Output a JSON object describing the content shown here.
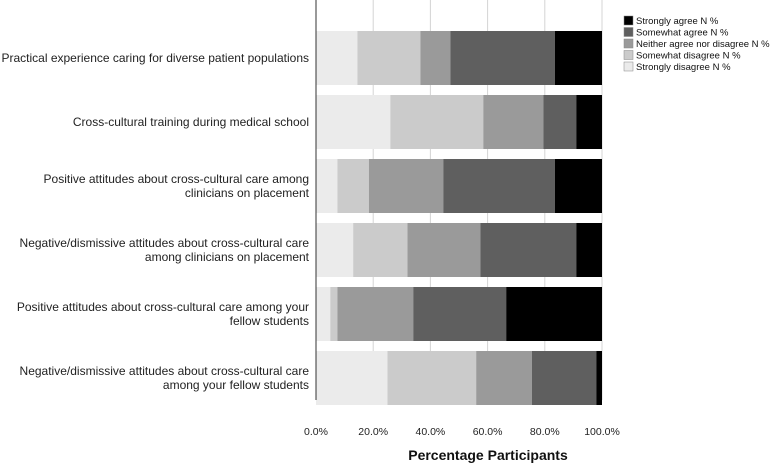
{
  "chart_data": {
    "type": "bar",
    "orientation": "horizontal",
    "stacked": true,
    "categories": [
      [
        "Practical experience caring for diverse patient populations"
      ],
      [
        "Cross-cultural training during medical school"
      ],
      [
        "Positive attitudes about cross-cultural care among",
        "clinicians on placement"
      ],
      [
        "Negative/dismissive attitudes about cross-cultural care",
        "among clinicians on placement"
      ],
      [
        "Positive attitudes about cross-cultural care among your",
        "fellow students"
      ],
      [
        "Negative/dismissive attitudes about cross-cultural care",
        "among your fellow students"
      ]
    ],
    "series": [
      {
        "name": "Strongly disagree N %",
        "color": "#ebebeb",
        "values": [
          14.5,
          26.0,
          7.5,
          13.0,
          5.0,
          25.0
        ]
      },
      {
        "name": "Somewhat disagree N %",
        "color": "#cbcbcb",
        "values": [
          22.0,
          32.5,
          11.0,
          19.0,
          2.5,
          31.0
        ]
      },
      {
        "name": "Neither agree nor disagree N %",
        "color": "#9a9a9a",
        "values": [
          10.5,
          21.0,
          26.0,
          25.5,
          26.5,
          19.5
        ]
      },
      {
        "name": "Somewhat agree N %",
        "color": "#5f5f5f",
        "values": [
          36.5,
          11.5,
          39.0,
          33.5,
          32.5,
          22.5
        ]
      },
      {
        "name": "Strongly agree N %",
        "color": "#000000",
        "values": [
          16.5,
          9.0,
          16.5,
          9.0,
          33.5,
          2.0
        ]
      }
    ],
    "xlim": [
      0,
      100
    ],
    "xticks": [
      "0.0%",
      "20.0%",
      "40.0%",
      "60.0%",
      "80.0%",
      "100.0%"
    ],
    "xlabel": "Percentage Participants",
    "ylabel": "",
    "grid": "vertical",
    "legend_position": "top-right",
    "legend_order": [
      "Strongly agree N %",
      "Somewhat agree N %",
      "Neither agree nor disagree N %",
      "Somewhat disagree N %",
      "Strongly disagree N %"
    ]
  }
}
